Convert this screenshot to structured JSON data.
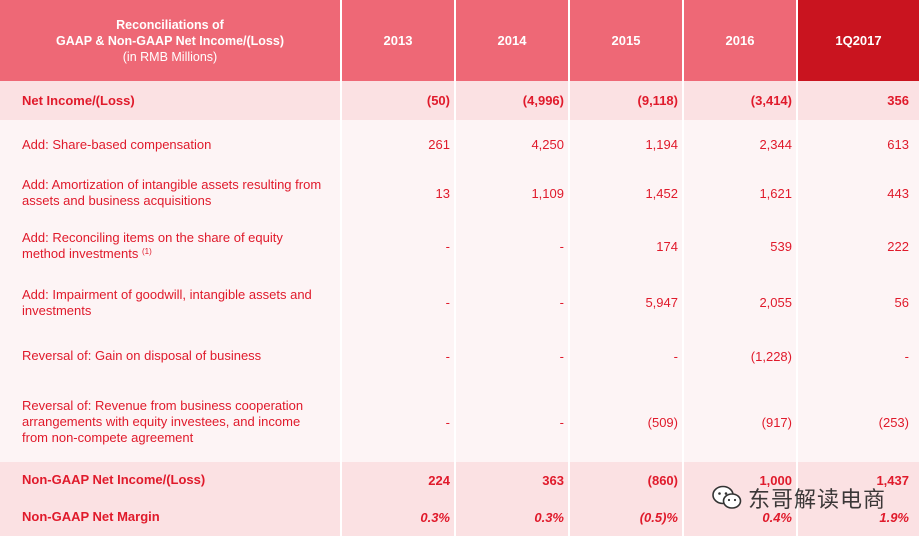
{
  "header": {
    "title_line1": "Reconciliations of",
    "title_line2": "GAAP & Non-GAAP Net Income/(Loss)",
    "title_line3": "(in RMB Millions)",
    "years": [
      "2013",
      "2014",
      "2015",
      "2016",
      "1Q2017"
    ]
  },
  "rows": [
    {
      "label": "Net Income/(Loss)",
      "values": [
        "(50)",
        "(4,996)",
        "(9,118)",
        "(3,414)",
        "356"
      ]
    },
    {
      "label": "Add: Share-based compensation",
      "values": [
        "261",
        "4,250",
        "1,194",
        "2,344",
        "613"
      ]
    },
    {
      "label_line1": "Add: Amortization of intangible assets resulting from",
      "label_line2": "assets and business acquisitions",
      "values": [
        "13",
        "1,109",
        "1,452",
        "1,621",
        "443"
      ]
    },
    {
      "label_line1": "Add: Reconciling items on the share of equity",
      "label_line2": "method investments",
      "footnote": "(1)",
      "values": [
        "-",
        "-",
        "174",
        "539",
        "222"
      ]
    },
    {
      "label_line1": "Add: Impairment of goodwill, intangible assets and",
      "label_line2": "investments",
      "values": [
        "-",
        "-",
        "5,947",
        "2,055",
        "56"
      ]
    },
    {
      "label": "Reversal of: Gain on disposal of business",
      "values": [
        "-",
        "-",
        "-",
        "(1,228)",
        "-"
      ]
    },
    {
      "label_line1": "Reversal of: Revenue from business cooperation",
      "label_line2": "arrangements with equity investees, and income",
      "label_line3": "from non-compete agreement",
      "values": [
        "-",
        "-",
        "(509)",
        "(917)",
        "(253)"
      ]
    },
    {
      "label": "Non-GAAP Net Income/(Loss)",
      "values": [
        "224",
        "363",
        "(860)",
        "1,000",
        "1,437"
      ]
    },
    {
      "label": "Non-GAAP Net Margin",
      "values": [
        "0.3%",
        "0.3%",
        "(0.5)%",
        "0.4%",
        "1.9%"
      ]
    }
  ],
  "watermark": {
    "text": "东哥解读电商",
    "icon": "wechat-icon"
  }
}
